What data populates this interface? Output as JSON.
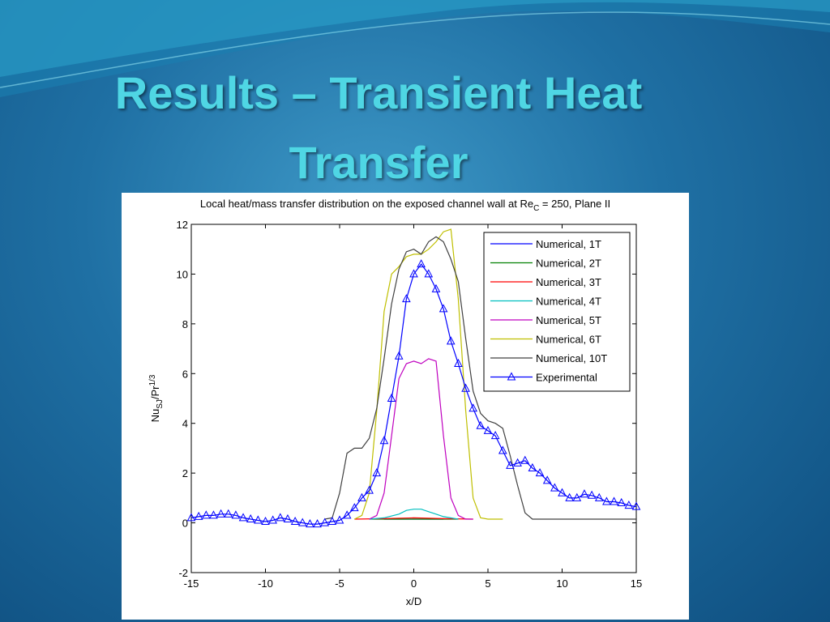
{
  "slide": {
    "title": "Results – Transient Heat Transfer"
  },
  "chart_data": {
    "type": "line",
    "title": [
      "Local heat/mass transfer distribution on the exposed channel wall at Re",
      "C",
      " = 250, Plane II"
    ],
    "x_label": "x/D",
    "y_label": [
      "Nu",
      "SJ",
      "/Pr",
      "1/3"
    ],
    "xlim": [
      -15,
      15
    ],
    "ylim": [
      -2,
      12
    ],
    "xticks": [
      -15,
      -10,
      -5,
      0,
      5,
      10,
      15
    ],
    "yticks": [
      -2,
      0,
      2,
      4,
      6,
      8,
      10,
      12
    ],
    "legend": "upper right",
    "series": [
      {
        "name": "Numerical, 1T",
        "color": "#0000ff",
        "x": [
          -2,
          2
        ],
        "values": [
          0.15,
          0.15
        ]
      },
      {
        "name": "Numerical, 2T",
        "color": "#008000",
        "x": [
          -3,
          0,
          3
        ],
        "values": [
          0.15,
          0.15,
          0.15
        ]
      },
      {
        "name": "Numerical, 3T",
        "color": "#ff0000",
        "x": [
          -4,
          -2,
          0,
          2,
          4
        ],
        "values": [
          0.15,
          0.17,
          0.2,
          0.17,
          0.15
        ]
      },
      {
        "name": "Numerical, 4T",
        "color": "#00bfbf",
        "x": [
          -3,
          -2,
          -1,
          -0.5,
          0,
          0.5,
          1,
          1.5,
          2,
          3
        ],
        "values": [
          0.15,
          0.2,
          0.35,
          0.5,
          0.55,
          0.55,
          0.45,
          0.35,
          0.25,
          0.15
        ]
      },
      {
        "name": "Numerical, 5T",
        "color": "#bf00bf",
        "x": [
          -3,
          -2.5,
          -2,
          -1.5,
          -1,
          -0.5,
          0,
          0.5,
          1,
          1.5,
          2,
          2.5,
          3,
          3.5,
          4
        ],
        "values": [
          0.15,
          0.3,
          1.2,
          3.5,
          5.8,
          6.4,
          6.5,
          6.4,
          6.6,
          6.5,
          3.5,
          1.0,
          0.3,
          0.15,
          0.15
        ]
      },
      {
        "name": "Numerical, 6T",
        "color": "#bfbf00",
        "x": [
          -4,
          -3.5,
          -3,
          -2.5,
          -2,
          -1.5,
          -1,
          -0.5,
          0,
          0.5,
          1,
          1.5,
          2,
          2.5,
          3,
          3.5,
          4,
          4.5,
          5,
          5.5,
          6
        ],
        "values": [
          0.15,
          0.3,
          1.2,
          4.5,
          8.5,
          10.0,
          10.3,
          10.7,
          10.8,
          10.8,
          11.0,
          11.3,
          11.7,
          11.8,
          9.0,
          4.5,
          1.0,
          0.2,
          0.15,
          0.15,
          0.15
        ]
      },
      {
        "name": "Numerical, 10T",
        "color": "#404040",
        "x": [
          -6,
          -5.5,
          -5,
          -4.5,
          -4,
          -3.5,
          -3,
          -2.5,
          -2,
          -1.5,
          -1,
          -0.5,
          0,
          0.5,
          1,
          1.5,
          2,
          2.5,
          3,
          3.5,
          4,
          4.5,
          5,
          5.5,
          6,
          6.5,
          7,
          7.5,
          8,
          15
        ],
        "values": [
          0.15,
          0.2,
          1.2,
          2.8,
          3.0,
          3.0,
          3.4,
          4.6,
          6.6,
          8.8,
          10.2,
          10.9,
          11.0,
          10.8,
          11.3,
          11.5,
          11.3,
          10.6,
          9.7,
          7.4,
          5.3,
          4.4,
          4.1,
          4.0,
          3.8,
          2.7,
          1.5,
          0.4,
          0.15,
          0.15
        ]
      },
      {
        "name": "Experimental",
        "color": "#0000ff",
        "marker": "triangle",
        "x": [
          -15,
          -14.5,
          -14,
          -13.5,
          -13,
          -12.5,
          -12,
          -11.5,
          -11,
          -10.5,
          -10,
          -9.5,
          -9,
          -8.5,
          -8,
          -7.5,
          -7,
          -6.5,
          -6,
          -5.5,
          -5,
          -4.5,
          -4,
          -3.5,
          -3,
          -2.5,
          -2,
          -1.5,
          -1,
          -0.5,
          0,
          0.5,
          1,
          1.5,
          2,
          2.5,
          3,
          3.5,
          4,
          4.5,
          5,
          5.5,
          6,
          6.5,
          7,
          7.5,
          8,
          8.5,
          9,
          9.5,
          10,
          10.5,
          11,
          11.5,
          12,
          12.5,
          13,
          13.5,
          14,
          14.5,
          15
        ],
        "values": [
          0.2,
          0.25,
          0.3,
          0.3,
          0.35,
          0.35,
          0.3,
          0.2,
          0.15,
          0.1,
          0.05,
          0.1,
          0.2,
          0.15,
          0.05,
          0,
          -0.05,
          -0.05,
          0,
          0.05,
          0.1,
          0.3,
          0.6,
          1.0,
          1.3,
          2.0,
          3.3,
          5.0,
          6.7,
          9.0,
          10.0,
          10.4,
          10.0,
          9.4,
          8.6,
          7.3,
          6.4,
          5.4,
          4.6,
          3.9,
          3.7,
          3.5,
          2.9,
          2.3,
          2.4,
          2.5,
          2.2,
          2.0,
          1.7,
          1.4,
          1.2,
          1.0,
          1.0,
          1.15,
          1.1,
          1.0,
          0.85,
          0.85,
          0.8,
          0.7,
          0.65
        ]
      }
    ]
  }
}
